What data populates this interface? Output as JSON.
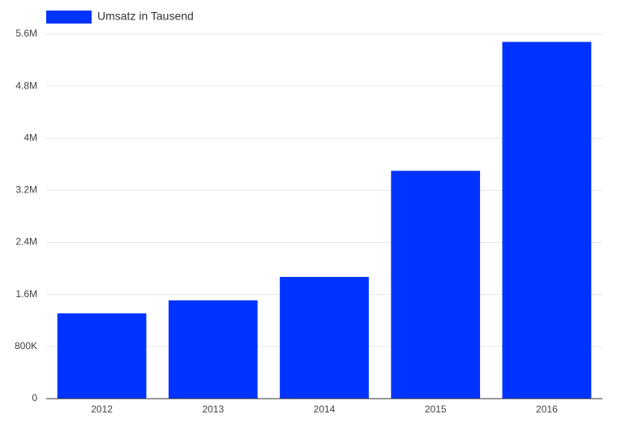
{
  "chart_data": {
    "type": "bar",
    "legend": "Umsatz in Tausend",
    "categories": [
      "2012",
      "2013",
      "2014",
      "2015",
      "2016"
    ],
    "values": [
      1310000,
      1510000,
      1870000,
      3500000,
      5480000
    ],
    "color": "#0033ff",
    "ylim": [
      0,
      5600000
    ],
    "yticks": [
      0,
      {
        "value": 800000,
        "label": "800K"
      },
      {
        "value": 1600000,
        "label": "1.6M"
      },
      {
        "value": 2400000,
        "label": "2.4M"
      },
      {
        "value": 3200000,
        "label": "3.2M"
      },
      {
        "value": 4000000,
        "label": "4M"
      },
      {
        "value": 4800000,
        "label": "4.8M"
      },
      {
        "value": 5600000,
        "label": "5.6M"
      }
    ],
    "grid": true
  }
}
